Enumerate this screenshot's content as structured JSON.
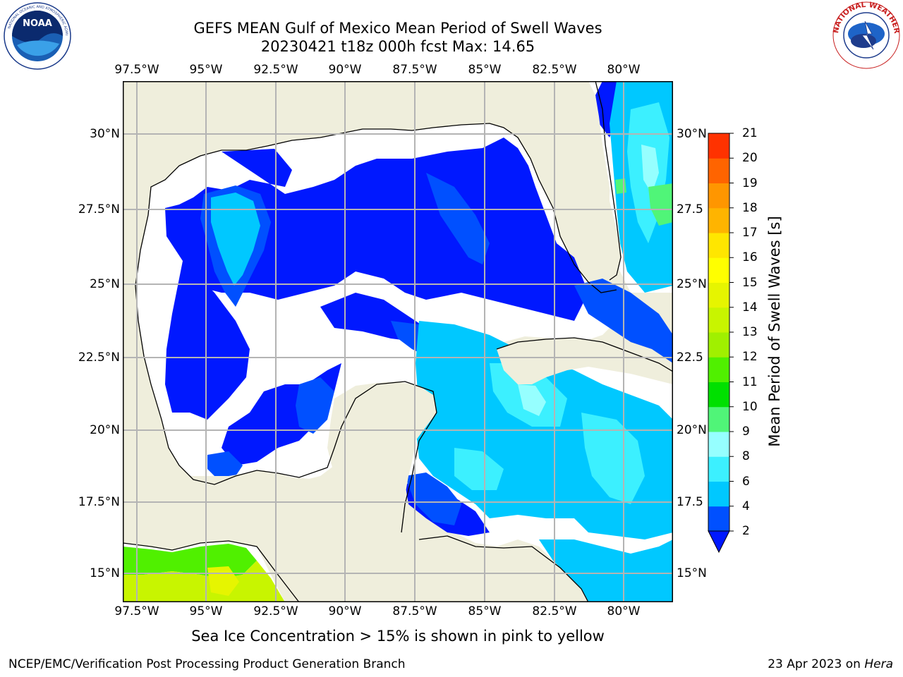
{
  "title": "GEFS MEAN Gulf of Mexico Mean Period of Swell Waves",
  "subtitle": "20230421 t18z 000h fcst   Max: 14.65",
  "colorbar": {
    "label": "Mean Period of Swell Waves [s]",
    "ticks": [
      "2",
      "4",
      "6",
      "8",
      "9",
      "10",
      "11",
      "12",
      "13",
      "14",
      "15",
      "16",
      "17",
      "18",
      "19",
      "20",
      "21"
    ],
    "colors": [
      "#0050ff",
      "#00c8ff",
      "#3cf0ff",
      "#96ffff",
      "#50f578",
      "#00e000",
      "#50f000",
      "#a0f000",
      "#c8f500",
      "#e6f500",
      "#ffff00",
      "#ffe600",
      "#ffb400",
      "#ff9600",
      "#ff6400",
      "#ff3200",
      "#ff0000"
    ],
    "under_color": "#0018ff"
  },
  "axes": {
    "lon_labels": [
      "97.5°W",
      "95°W",
      "92.5°W",
      "90°W",
      "87.5°W",
      "85°W",
      "82.5°W",
      "80°W"
    ],
    "lat_labels_left": [
      "30°N",
      "27.5°N",
      "25°N",
      "22.5°N",
      "20°N",
      "17.5°N",
      "15°N"
    ],
    "lat_labels_right": [
      "30°N",
      "27.5",
      "25°N",
      "22.5",
      "20°N",
      "17.5",
      "15°N"
    ]
  },
  "map_colors": {
    "land": "#efeedc",
    "ocean_nodata": "#ffffff",
    "grid": "#b4b4b4"
  },
  "note": "Sea Ice Concentration > 15% is shown in pink to yellow",
  "footer": {
    "left": "NCEP/EMC/Verification Post Processing Product Generation Branch",
    "date": "23 Apr 2023 on ",
    "machine": "Hera"
  },
  "logos": {
    "noaa": "NOAA",
    "nws": "NATIONAL WEATHER SERVICE"
  }
}
